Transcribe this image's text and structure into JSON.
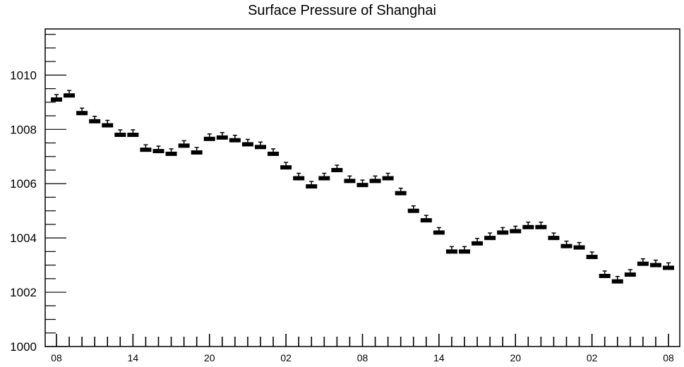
{
  "chart_data": {
    "type": "boxplot",
    "title": "Surface Pressure of Shanghai",
    "xlabel": "",
    "ylabel": "",
    "ylim": [
      1000,
      1011.7
    ],
    "yticks": [
      1000,
      1002,
      1004,
      1006,
      1008,
      1010
    ],
    "ytick_labels": [
      "1000",
      "1002",
      "1004",
      "1006",
      "1008",
      "1010"
    ],
    "x_positions_labeled": [
      0,
      6,
      12,
      18,
      24,
      30,
      36,
      42,
      48
    ],
    "xtick_labels": [
      "08",
      "14",
      "20",
      "02",
      "08",
      "14",
      "20",
      "02",
      "08"
    ],
    "x_count": 49,
    "grid": false,
    "series": [
      {
        "values": [
          1009.1,
          1009.25,
          1008.6,
          1008.3,
          1008.15,
          1007.8,
          1007.8,
          1007.25,
          1007.2,
          1007.1,
          1007.4,
          1007.15,
          1007.65,
          1007.7,
          1007.6,
          1007.45,
          1007.35,
          1007.1,
          1006.6,
          1006.2,
          1005.9,
          1006.2,
          1006.5,
          1006.1,
          1005.95,
          1006.1,
          1006.2,
          1005.65,
          1005.0,
          1004.65,
          1004.2,
          1003.5,
          1003.5,
          1003.8,
          1004.0,
          1004.2,
          1004.25,
          1004.4,
          1004.4,
          1004.0,
          1003.7,
          1003.65,
          1003.3,
          1002.6,
          1002.4,
          1002.65,
          1003.05,
          1003.0,
          1002.9
        ]
      }
    ]
  }
}
